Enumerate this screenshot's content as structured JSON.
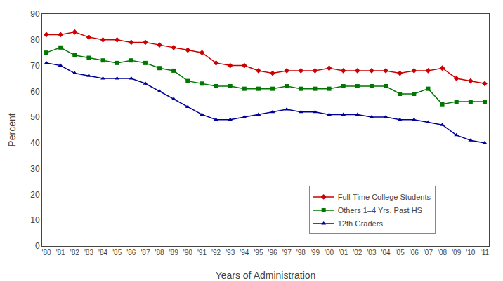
{
  "chart_data": {
    "type": "line",
    "xlabel": "Years of Administration",
    "ylabel": "Percent",
    "x": [
      1980,
      1981,
      1982,
      1983,
      1984,
      1985,
      1986,
      1987,
      1988,
      1989,
      1990,
      1991,
      1992,
      1993,
      1994,
      1995,
      1996,
      1997,
      1998,
      1999,
      2000,
      2001,
      2002,
      2003,
      2004,
      2005,
      2006,
      2007,
      2008,
      2009,
      2010,
      2011
    ],
    "series": [
      {
        "name": "Full-Time College Students",
        "color": "#cc0000",
        "marker": "diamond",
        "values": [
          82,
          82,
          83,
          81,
          80,
          80,
          79,
          79,
          78,
          77,
          76,
          75,
          71,
          70,
          70,
          68,
          67,
          68,
          68,
          68,
          69,
          68,
          68,
          68,
          68,
          67,
          68,
          68,
          69,
          65,
          64,
          63
        ]
      },
      {
        "name": "Others 1–4 Yrs. Past HS",
        "color": "#007700",
        "marker": "square",
        "values": [
          75,
          77,
          74,
          73,
          72,
          71,
          72,
          71,
          69,
          68,
          64,
          63,
          62,
          62,
          61,
          61,
          61,
          62,
          61,
          61,
          61,
          62,
          62,
          62,
          62,
          59,
          59,
          61,
          55,
          56,
          56,
          56
        ]
      },
      {
        "name": "12th Graders",
        "color": "#000099",
        "marker": "triangle-up",
        "values": [
          71,
          70,
          67,
          66,
          65,
          65,
          65,
          63,
          60,
          57,
          54,
          51,
          49,
          49,
          50,
          51,
          52,
          53,
          52,
          52,
          51,
          51,
          51,
          50,
          50,
          49,
          49,
          48,
          47,
          43,
          41,
          40
        ]
      }
    ],
    "xlim": [
      1979.7,
      2011.3
    ],
    "xticks": [
      {
        "value": 1980,
        "label": "'80"
      },
      {
        "value": 1981,
        "label": "'81"
      },
      {
        "value": 1982,
        "label": "'82"
      },
      {
        "value": 1983,
        "label": "'83"
      },
      {
        "value": 1984,
        "label": "'84"
      },
      {
        "value": 1985,
        "label": "'85"
      },
      {
        "value": 1986,
        "label": "'86"
      },
      {
        "value": 1987,
        "label": "'87"
      },
      {
        "value": 1988,
        "label": "'88"
      },
      {
        "value": 1989,
        "label": "'89"
      },
      {
        "value": 1990,
        "label": "'90"
      },
      {
        "value": 1991,
        "label": "'91"
      },
      {
        "value": 1992,
        "label": "'92"
      },
      {
        "value": 1993,
        "label": "'93"
      },
      {
        "value": 1994,
        "label": "'94"
      },
      {
        "value": 1995,
        "label": "'95"
      },
      {
        "value": 1996,
        "label": "'96"
      },
      {
        "value": 1997,
        "label": "'97"
      },
      {
        "value": 1998,
        "label": "'98"
      },
      {
        "value": 1999,
        "label": "'99"
      },
      {
        "value": 2000,
        "label": "'00"
      },
      {
        "value": 2001,
        "label": "'01"
      },
      {
        "value": 2002,
        "label": "'02"
      },
      {
        "value": 2003,
        "label": "'03"
      },
      {
        "value": 2004,
        "label": "'04"
      },
      {
        "value": 2005,
        "label": "'05"
      },
      {
        "value": 2006,
        "label": "'06"
      },
      {
        "value": 2007,
        "label": "'07"
      },
      {
        "value": 2008,
        "label": "'08"
      },
      {
        "value": 2009,
        "label": "'09"
      },
      {
        "value": 2010,
        "label": "'10"
      },
      {
        "value": 2011,
        "label": "'11"
      }
    ],
    "ylim": [
      0,
      90
    ],
    "yticks": [
      0,
      10,
      20,
      30,
      40,
      50,
      60,
      70,
      80,
      90
    ],
    "grid": false,
    "legend": "lower right"
  }
}
